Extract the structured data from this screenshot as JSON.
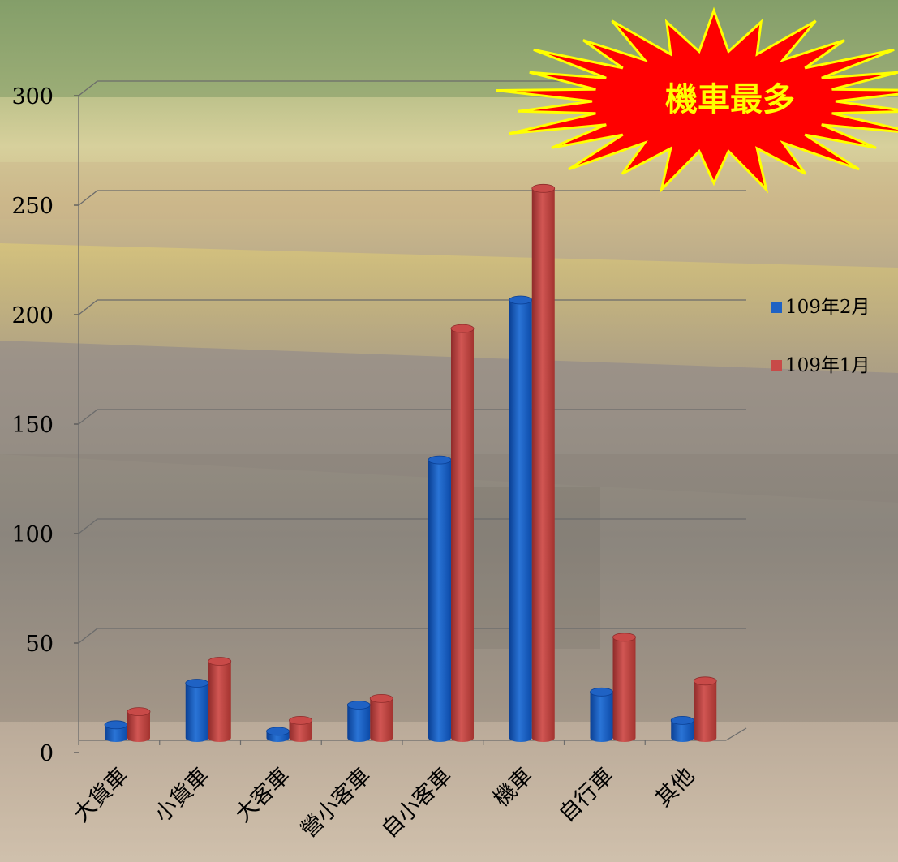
{
  "colors": {
    "series_a": "#1f62c4",
    "series_a_dark": "#0a3f93",
    "series_b": "#c84a48",
    "series_b_dark": "#8f2b2a",
    "burst_fill": "#ff0000",
    "burst_stroke": "#ffff00",
    "burst_text": "#ffff00"
  },
  "callout": {
    "text": "機車最多",
    "shape": "starburst"
  },
  "chart_data": {
    "type": "bar",
    "title": "",
    "xlabel": "",
    "ylabel": "",
    "ylim": [
      0,
      300
    ],
    "yticks": [
      "0",
      "50",
      "100",
      "150",
      "200",
      "250",
      "300"
    ],
    "grid": true,
    "legend_position": "right",
    "categories": [
      "大貨車",
      "小貨車",
      "大客車",
      "營小客車",
      "自小客車",
      "機車",
      "自行車",
      "其他"
    ],
    "series": [
      {
        "name": "109年2月",
        "values": [
          6,
          25,
          3,
          15,
          127,
          200,
          21,
          8
        ]
      },
      {
        "name": "109年1月",
        "values": [
          12,
          35,
          8,
          18,
          187,
          251,
          46,
          26
        ]
      }
    ]
  }
}
